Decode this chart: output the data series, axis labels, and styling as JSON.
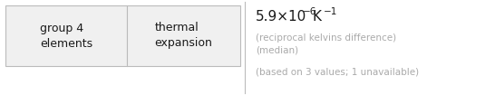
{
  "col1_text": "group 4\nelements",
  "col2_text": "thermal\nexpansion",
  "sub_line1": "(reciprocal kelvins difference)",
  "sub_line2": "(median)",
  "sub_line3": "(based on 3 values; 1 unavailable)",
  "bg_color": "#ffffff",
  "cell_bg": "#f0f0f0",
  "border_color": "#bbbbbb",
  "text_color_dark": "#1a1a1a",
  "text_color_gray": "#aaaaaa",
  "fig_width": 5.46,
  "fig_height": 1.05,
  "dpi": 100
}
